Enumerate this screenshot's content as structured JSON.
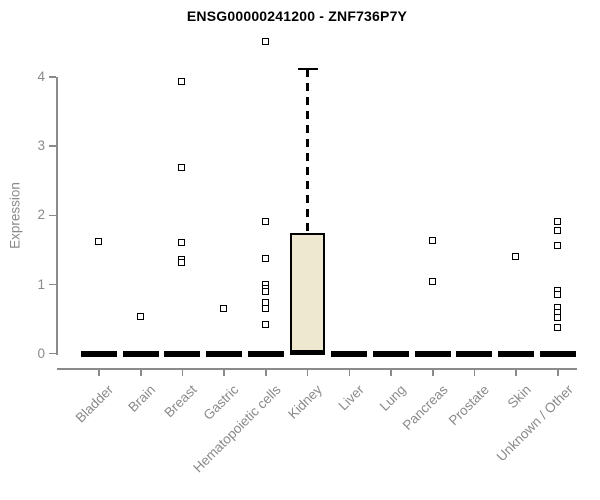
{
  "chart_data": {
    "type": "box",
    "title": "ENSG00000241200 - ZNF736P7Y",
    "xlabel": "",
    "ylabel": "Expression",
    "ylim": [
      0,
      4.6
    ],
    "yticks": [
      0,
      1,
      2,
      3,
      4
    ],
    "grid": false,
    "legend": "none",
    "categories": [
      "Bladder",
      "Brain",
      "Breast",
      "Gastric",
      "Hematopoietic cells",
      "Kidney",
      "Liver",
      "Lung",
      "Pancreas",
      "Prostate",
      "Skin",
      "Unknown / Other"
    ],
    "boxes": [
      {
        "category": "Bladder",
        "whisker_low": 0,
        "q1": 0,
        "median": 0,
        "q3": 0,
        "whisker_high": 0
      },
      {
        "category": "Brain",
        "whisker_low": 0,
        "q1": 0,
        "median": 0,
        "q3": 0,
        "whisker_high": 0
      },
      {
        "category": "Breast",
        "whisker_low": 0,
        "q1": 0,
        "median": 0,
        "q3": 0,
        "whisker_high": 0
      },
      {
        "category": "Gastric",
        "whisker_low": 0,
        "q1": 0,
        "median": 0,
        "q3": 0,
        "whisker_high": 0
      },
      {
        "category": "Hematopoietic cells",
        "whisker_low": 0,
        "q1": 0,
        "median": 0,
        "q3": 0,
        "whisker_high": 0
      },
      {
        "category": "Kidney",
        "whisker_low": 0,
        "q1": 0,
        "median": 0,
        "q3": 1.75,
        "whisker_high": 4.11
      },
      {
        "category": "Liver",
        "whisker_low": 0,
        "q1": 0,
        "median": 0,
        "q3": 0,
        "whisker_high": 0
      },
      {
        "category": "Lung",
        "whisker_low": 0,
        "q1": 0,
        "median": 0,
        "q3": 0,
        "whisker_high": 0
      },
      {
        "category": "Pancreas",
        "whisker_low": 0,
        "q1": 0,
        "median": 0,
        "q3": 0,
        "whisker_high": 0
      },
      {
        "category": "Prostate",
        "whisker_low": 0,
        "q1": 0,
        "median": 0,
        "q3": 0,
        "whisker_high": 0
      },
      {
        "category": "Skin",
        "whisker_low": 0,
        "q1": 0,
        "median": 0,
        "q3": 0,
        "whisker_high": 0
      },
      {
        "category": "Unknown / Other",
        "whisker_low": 0,
        "q1": 0,
        "median": 0,
        "q3": 0,
        "whisker_high": 0
      }
    ],
    "outliers": [
      {
        "category": "Bladder",
        "values": [
          1.61
        ]
      },
      {
        "category": "Brain",
        "values": [
          0.53
        ]
      },
      {
        "category": "Breast",
        "values": [
          3.92,
          2.69,
          1.6,
          1.35,
          1.31
        ]
      },
      {
        "category": "Gastric",
        "values": [
          0.65
        ]
      },
      {
        "category": "Hematopoietic cells",
        "values": [
          4.5,
          1.9,
          1.37,
          0.99,
          0.94,
          0.89,
          0.73,
          0.65,
          0.42
        ]
      },
      {
        "category": "Kidney",
        "values": []
      },
      {
        "category": "Liver",
        "values": []
      },
      {
        "category": "Lung",
        "values": []
      },
      {
        "category": "Pancreas",
        "values": [
          1.63,
          1.03
        ]
      },
      {
        "category": "Prostate",
        "values": []
      },
      {
        "category": "Skin",
        "values": [
          1.4
        ]
      },
      {
        "category": "Unknown / Other",
        "values": [
          1.91,
          1.77,
          1.55,
          0.91,
          0.85,
          0.66,
          0.59,
          0.52,
          0.37
        ]
      }
    ],
    "colors": {
      "box_fill": "#EEE8D0",
      "box_border": "#000000",
      "median": "#000000",
      "whisker": "#000000",
      "point": "#000000",
      "axis": "#8a8a8a",
      "tick_label": "#8a8a8a",
      "title": "#000000",
      "background": "#ffffff"
    }
  }
}
